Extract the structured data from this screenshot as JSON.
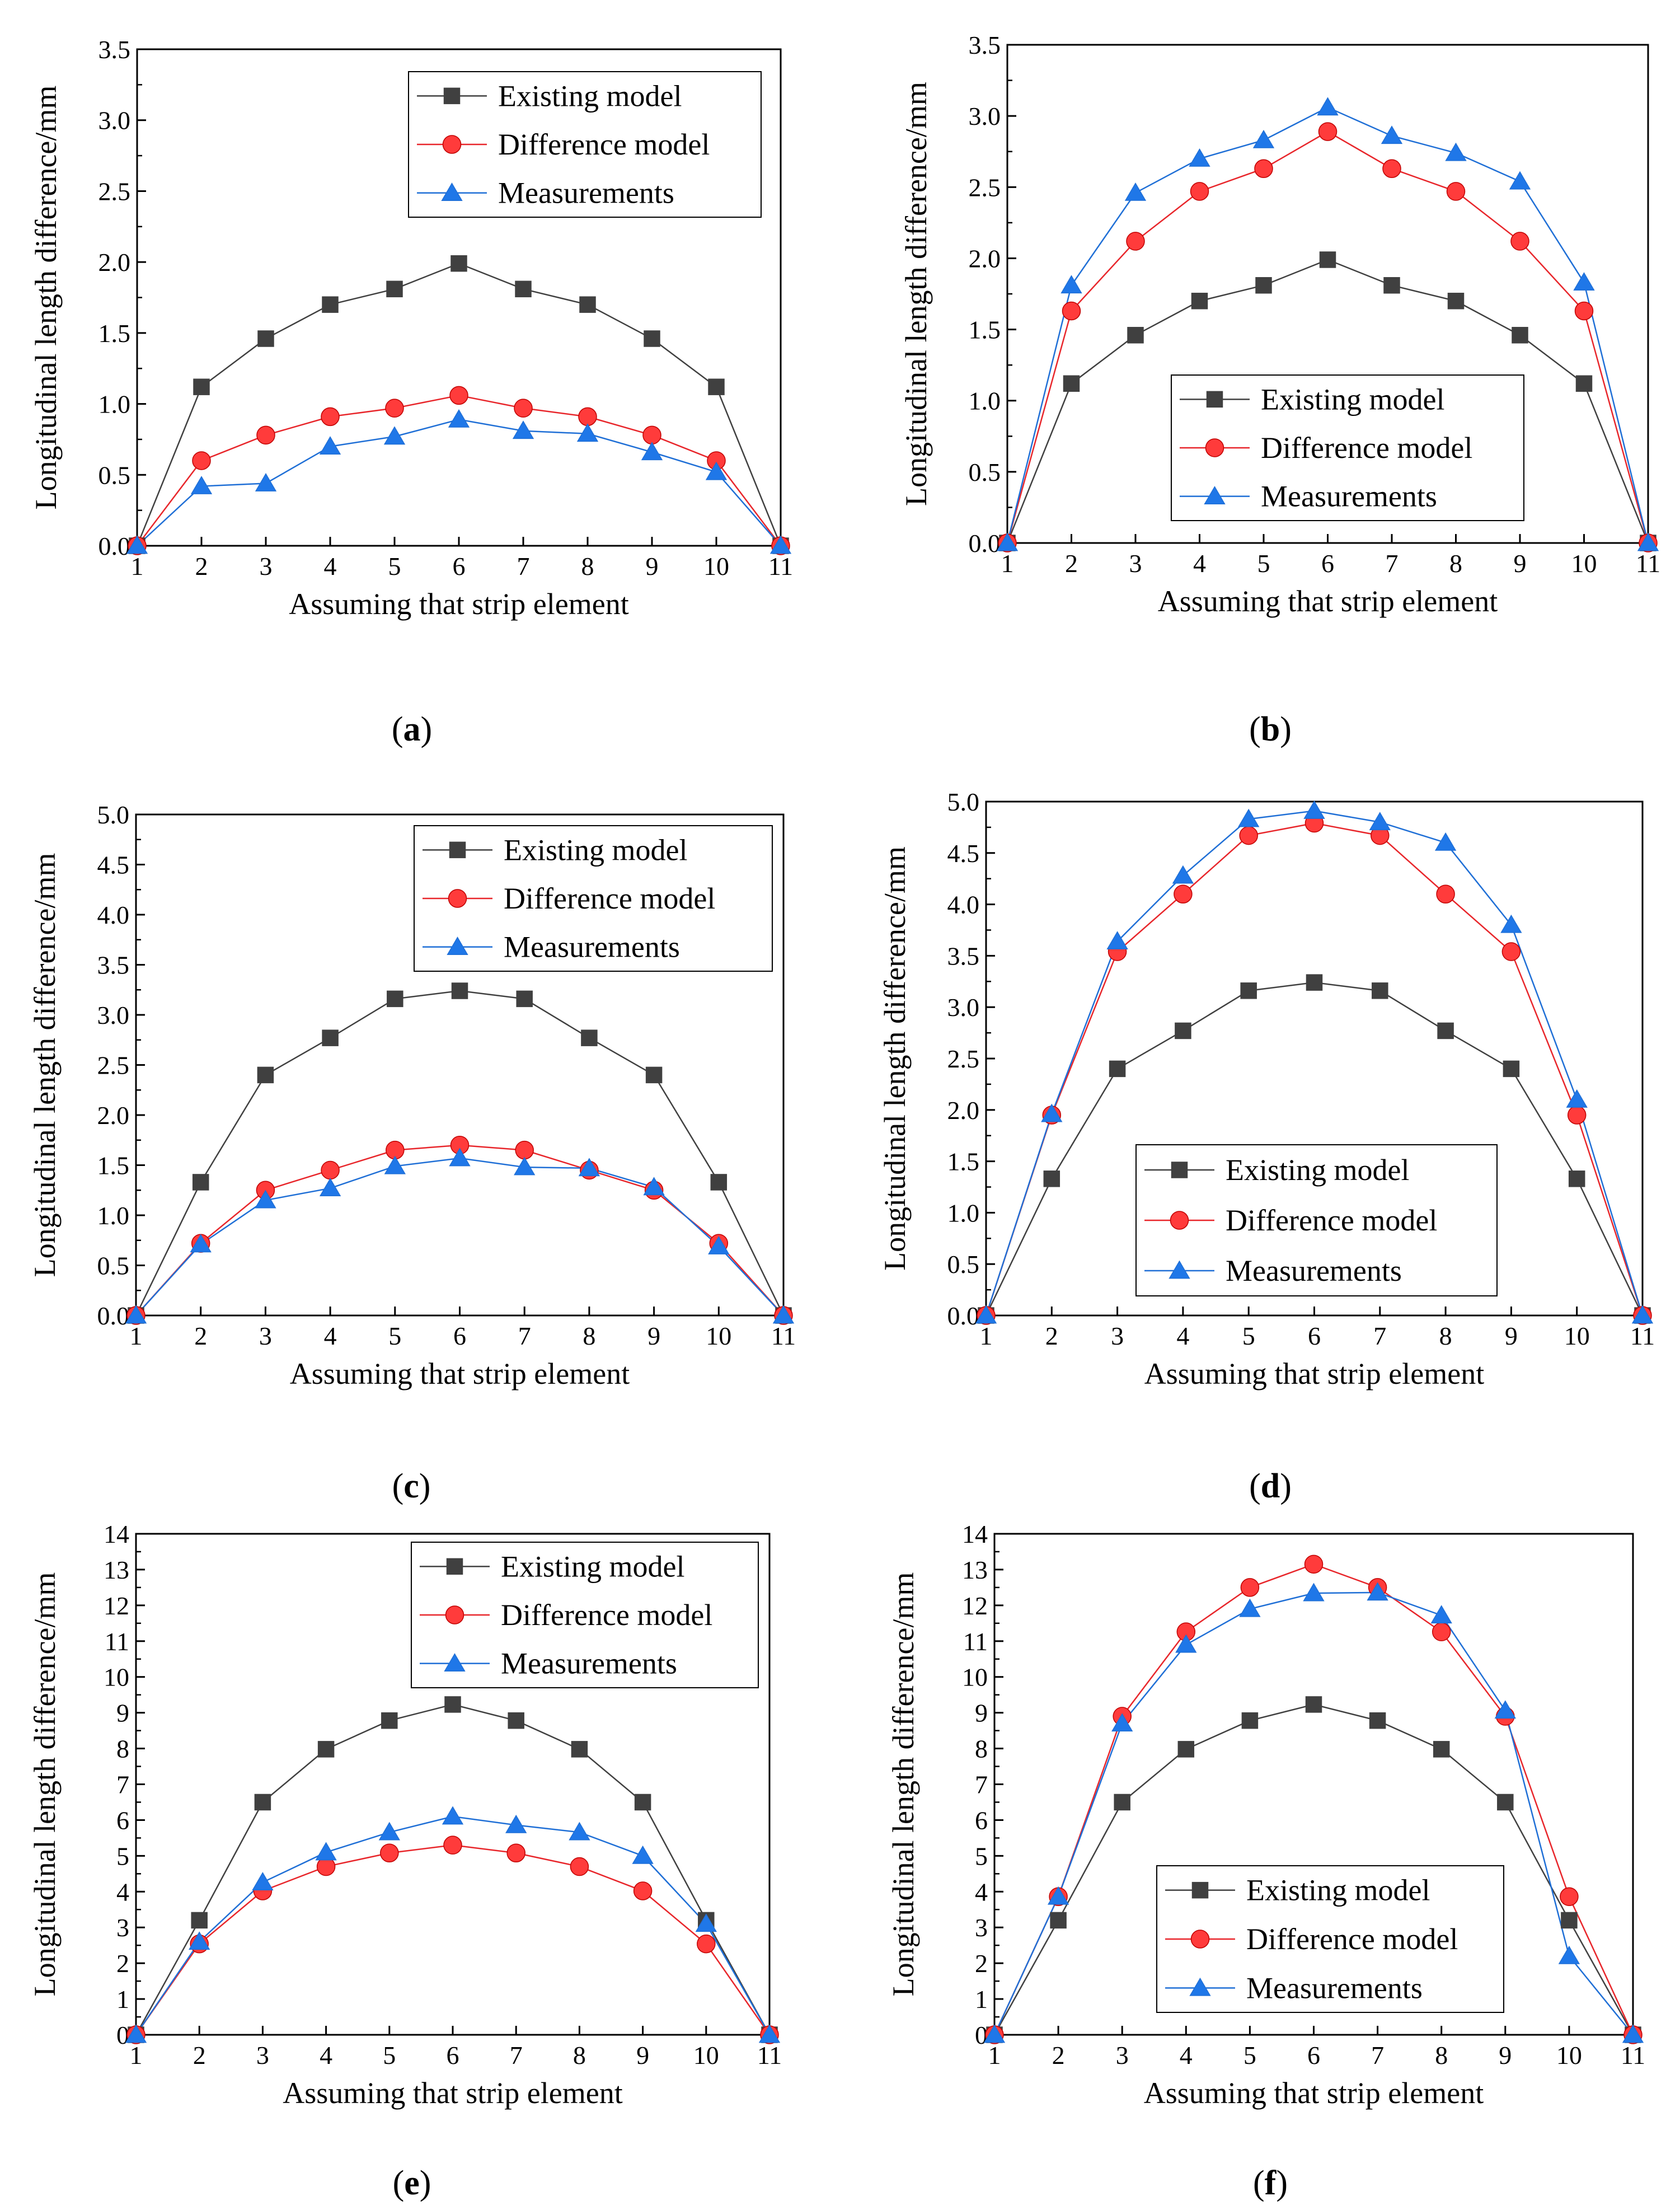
{
  "figure": {
    "series_names": [
      "Existing model",
      "Difference model",
      "Measurements"
    ],
    "series_colors": [
      "#404040",
      "#e8262b",
      "#1f6fd6"
    ],
    "marker_fill_colors": [
      "#404040",
      "#ff3b3b",
      "#1f77e8"
    ]
  },
  "chart_data": [
    {
      "type": "line",
      "panel_label": "a",
      "title": "",
      "xlabel": "Assuming that strip element",
      "ylabel": "Longitudinal length difference/mm",
      "x": [
        1,
        2,
        3,
        4,
        5,
        6,
        7,
        8,
        9,
        10,
        11
      ],
      "xlim": [
        1,
        11
      ],
      "ylim": [
        0,
        3.5
      ],
      "yticks": [
        0,
        0.5,
        1,
        1.5,
        2,
        2.5,
        3,
        3.5
      ],
      "yticks_labels": [
        "0.0",
        "0.5",
        "1.0",
        "1.5",
        "2.0",
        "2.5",
        "3.0",
        "3.5"
      ],
      "legend_position": "top-right",
      "series": [
        {
          "name": "Existing model",
          "values": [
            0,
            1.12,
            1.46,
            1.7,
            1.81,
            1.99,
            1.81,
            1.7,
            1.46,
            1.12,
            0
          ]
        },
        {
          "name": "Difference model",
          "values": [
            0,
            0.6,
            0.78,
            0.91,
            0.97,
            1.06,
            0.97,
            0.91,
            0.78,
            0.6,
            0
          ]
        },
        {
          "name": "Measurements",
          "values": [
            0,
            0.42,
            0.44,
            0.7,
            0.77,
            0.89,
            0.81,
            0.79,
            0.66,
            0.52,
            0
          ]
        }
      ]
    },
    {
      "type": "line",
      "panel_label": "b",
      "title": "",
      "xlabel": "Assuming that strip element",
      "ylabel": "Longitudinal length difference/mm",
      "x": [
        1,
        2,
        3,
        4,
        5,
        6,
        7,
        8,
        9,
        10,
        11
      ],
      "xlim": [
        1,
        11
      ],
      "ylim": [
        0,
        3.5
      ],
      "yticks": [
        0,
        0.5,
        1,
        1.5,
        2,
        2.5,
        3,
        3.5
      ],
      "yticks_labels": [
        "0.0",
        "0.5",
        "1.0",
        "1.5",
        "2.0",
        "2.5",
        "3.0",
        "3.5"
      ],
      "legend_position": "bottom-center",
      "series": [
        {
          "name": "Existing model",
          "values": [
            0,
            1.12,
            1.46,
            1.7,
            1.81,
            1.99,
            1.81,
            1.7,
            1.46,
            1.12,
            0
          ]
        },
        {
          "name": "Difference model",
          "values": [
            0,
            1.63,
            2.12,
            2.47,
            2.63,
            2.89,
            2.63,
            2.47,
            2.12,
            1.63,
            0
          ]
        },
        {
          "name": "Measurements",
          "values": [
            0,
            1.81,
            2.46,
            2.7,
            2.83,
            3.06,
            2.86,
            2.74,
            2.54,
            1.83,
            0
          ]
        }
      ]
    },
    {
      "type": "line",
      "panel_label": "c",
      "title": "",
      "xlabel": "Assuming that strip element",
      "ylabel": "Longitudinal length difference/mm",
      "x": [
        1,
        2,
        3,
        4,
        5,
        6,
        7,
        8,
        9,
        10,
        11
      ],
      "xlim": [
        1,
        11
      ],
      "ylim": [
        0,
        5.0
      ],
      "yticks": [
        0,
        0.5,
        1,
        1.5,
        2,
        2.5,
        3,
        3.5,
        4,
        4.5,
        5
      ],
      "yticks_labels": [
        "0.0",
        "0.5",
        "1.0",
        "1.5",
        "2.0",
        "2.5",
        "3.0",
        "3.5",
        "4.0",
        "4.5",
        "5.0"
      ],
      "legend_position": "top-right",
      "series": [
        {
          "name": "Existing model",
          "values": [
            0,
            1.33,
            2.4,
            2.77,
            3.16,
            3.24,
            3.16,
            2.77,
            2.4,
            1.33,
            0
          ]
        },
        {
          "name": "Difference model",
          "values": [
            0,
            0.72,
            1.25,
            1.45,
            1.65,
            1.7,
            1.65,
            1.45,
            1.25,
            0.72,
            0
          ]
        },
        {
          "name": "Measurements",
          "values": [
            0,
            0.71,
            1.15,
            1.27,
            1.49,
            1.57,
            1.48,
            1.47,
            1.28,
            0.69,
            0
          ]
        }
      ]
    },
    {
      "type": "line",
      "panel_label": "d",
      "title": "",
      "xlabel": "Assuming that strip element",
      "ylabel": "Longitudinal length difference/mm",
      "x": [
        1,
        2,
        3,
        4,
        5,
        6,
        7,
        8,
        9,
        10,
        11
      ],
      "xlim": [
        1,
        11
      ],
      "ylim": [
        0,
        5.0
      ],
      "yticks": [
        0,
        0.5,
        1,
        1.5,
        2,
        2.5,
        3,
        3.5,
        4,
        4.5,
        5
      ],
      "yticks_labels": [
        "0.0",
        "0.5",
        "1.0",
        "1.5",
        "2.0",
        "2.5",
        "3.0",
        "3.5",
        "4.0",
        "4.5",
        "5.0"
      ],
      "legend_position": "bottom-center",
      "series": [
        {
          "name": "Existing model",
          "values": [
            0,
            1.33,
            2.4,
            2.77,
            3.16,
            3.24,
            3.16,
            2.77,
            2.4,
            1.33,
            0
          ]
        },
        {
          "name": "Difference model",
          "values": [
            0,
            1.95,
            3.54,
            4.1,
            4.67,
            4.79,
            4.67,
            4.1,
            3.54,
            1.95,
            0
          ]
        },
        {
          "name": "Measurements",
          "values": [
            0,
            1.96,
            3.64,
            4.28,
            4.83,
            4.91,
            4.8,
            4.6,
            3.8,
            2.1,
            0
          ]
        }
      ]
    },
    {
      "type": "line",
      "panel_label": "e",
      "title": "",
      "xlabel": "Assuming that strip element",
      "ylabel": "Longitudinal length difference/mm",
      "x": [
        1,
        2,
        3,
        4,
        5,
        6,
        7,
        8,
        9,
        10,
        11
      ],
      "xlim": [
        1,
        11
      ],
      "ylim": [
        0,
        14
      ],
      "yticks": [
        0,
        1,
        2,
        3,
        4,
        5,
        6,
        7,
        8,
        9,
        10,
        11,
        12,
        13,
        14
      ],
      "yticks_labels": [
        "0",
        "1",
        "2",
        "3",
        "4",
        "5",
        "6",
        "7",
        "8",
        "9",
        "10",
        "11",
        "12",
        "13",
        "14"
      ],
      "legend_position": "top-right",
      "series": [
        {
          "name": "Existing model",
          "values": [
            0,
            3.2,
            6.5,
            7.98,
            8.78,
            9.23,
            8.78,
            7.98,
            6.5,
            3.2,
            0
          ]
        },
        {
          "name": "Difference model",
          "values": [
            0,
            2.54,
            4.02,
            4.7,
            5.08,
            5.3,
            5.08,
            4.7,
            4.02,
            2.54,
            0
          ]
        },
        {
          "name": "Measurements",
          "values": [
            0,
            2.6,
            4.26,
            5.1,
            5.66,
            6.1,
            5.86,
            5.66,
            5.0,
            3.1,
            0
          ]
        }
      ]
    },
    {
      "type": "line",
      "panel_label": "f",
      "title": "",
      "xlabel": "Assuming that strip element",
      "ylabel": "Longitudinal length difference/mm",
      "x": [
        1,
        2,
        3,
        4,
        5,
        6,
        7,
        8,
        9,
        10,
        11
      ],
      "xlim": [
        1,
        11
      ],
      "ylim": [
        0,
        14
      ],
      "yticks": [
        0,
        1,
        2,
        3,
        4,
        5,
        6,
        7,
        8,
        9,
        10,
        11,
        12,
        13,
        14
      ],
      "yticks_labels": [
        "0",
        "1",
        "2",
        "3",
        "4",
        "5",
        "6",
        "7",
        "8",
        "9",
        "10",
        "11",
        "12",
        "13",
        "14"
      ],
      "legend_position": "bottom-center",
      "series": [
        {
          "name": "Existing model",
          "values": [
            0,
            3.2,
            6.5,
            7.98,
            8.78,
            9.23,
            8.78,
            7.98,
            6.5,
            3.2,
            0
          ]
        },
        {
          "name": "Difference model",
          "values": [
            0,
            3.86,
            8.9,
            11.26,
            12.5,
            13.15,
            12.5,
            11.26,
            8.9,
            3.86,
            0
          ]
        },
        {
          "name": "Measurements",
          "values": [
            0,
            3.86,
            8.7,
            10.9,
            11.9,
            12.34,
            12.36,
            11.72,
            9.06,
            2.2,
            0
          ]
        }
      ]
    }
  ]
}
